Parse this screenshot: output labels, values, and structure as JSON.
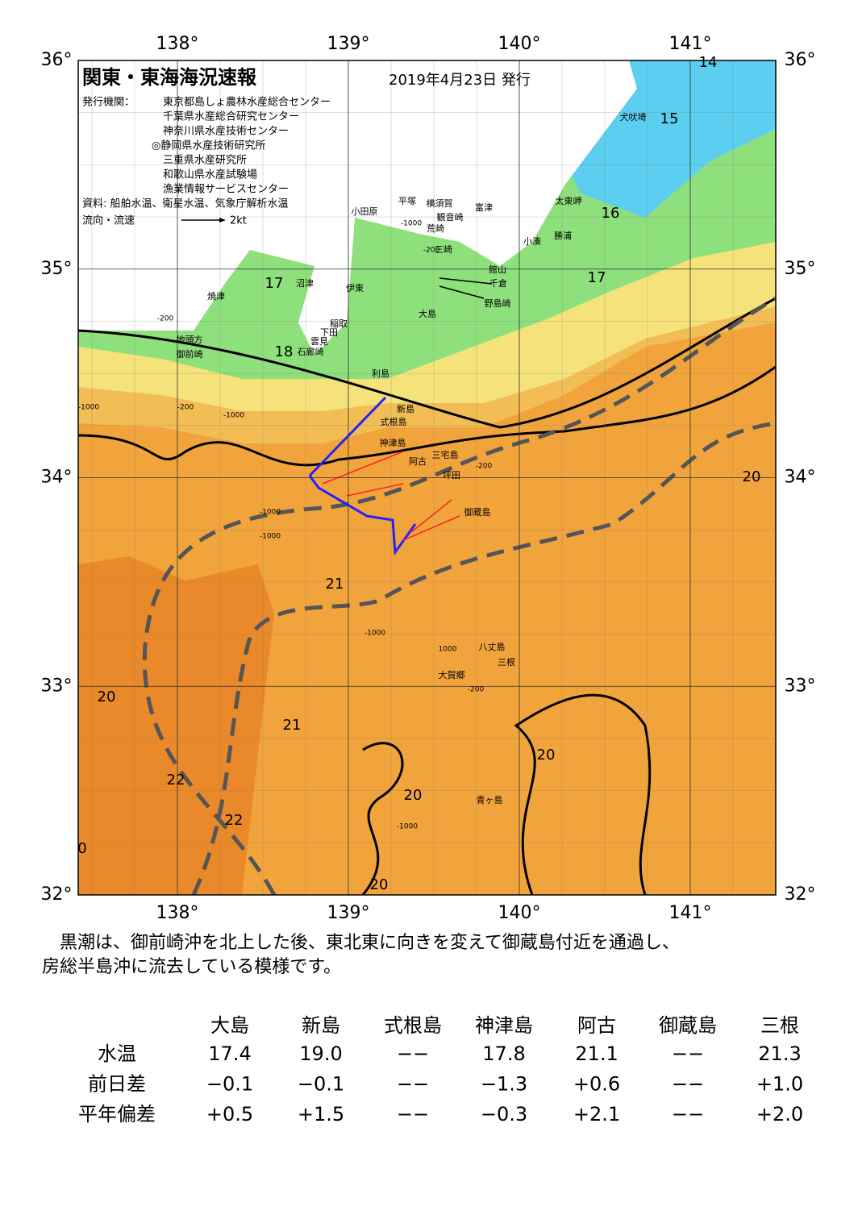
{
  "header": {
    "title": "関東・東海海況速報",
    "date": "2019年4月23日 発行",
    "issuer_label": "発行機関：",
    "issuers": [
      "東京都島しょ農林水産総合センター",
      "千葉県水産総合研究センター",
      "神奈川県水産技術センター",
      "◎静岡県水産技術研究所",
      "三重県水産研究所",
      "和歌山県水産試験場",
      "漁業情報サービスセンター"
    ],
    "source": "資料: 船舶水温、衛星水温、気象庁解析水温",
    "flow_label": "流向・流速",
    "flow_scale": "2kt"
  },
  "map": {
    "lon_ticks": [
      {
        "value": 138,
        "label": "138°"
      },
      {
        "value": 139,
        "label": "139°"
      },
      {
        "value": 140,
        "label": "140°"
      },
      {
        "value": 141,
        "label": "141°"
      }
    ],
    "lat_ticks": [
      {
        "value": 32,
        "label": "32°"
      },
      {
        "value": 33,
        "label": "33°"
      },
      {
        "value": 34,
        "label": "34°"
      },
      {
        "value": 35,
        "label": "35°"
      },
      {
        "value": 36,
        "label": "36°"
      }
    ],
    "place_names": [
      "犬吠埼",
      "太東岬",
      "勝浦",
      "小湊",
      "館山",
      "千倉",
      "野島崎",
      "富津",
      "横須賀",
      "観音崎",
      "平塚",
      "小田原",
      "荒崎",
      "三崎",
      "沼津",
      "伊東",
      "大島",
      "焼津",
      "稲取",
      "下田",
      "雲見",
      "石廊崎",
      "地頭方",
      "御前崎",
      "利島",
      "新島",
      "式根島",
      "神津島",
      "三宅島",
      "阿古",
      "坪田",
      "御蔵島",
      "八丈島",
      "三根",
      "大賀郷",
      "青ヶ島"
    ],
    "contour_labels": [
      "14",
      "15",
      "16",
      "17",
      "17",
      "18",
      "20",
      "21",
      "20",
      "21",
      "20",
      "22",
      "20",
      "22",
      "0",
      "20"
    ],
    "depth_labels": [
      "-1000",
      "-200",
      "-200",
      "-1000",
      "-200",
      "-1000",
      "-1000",
      "-200",
      "-1000",
      "1000",
      "-1000",
      "-200",
      "-1000"
    ]
  },
  "description": [
    "　黒潮は、御前崎沖を北上した後、東北東に向きを変えて御蔵島付近を通過し、",
    "房総半島沖に流去している模様です。"
  ],
  "table": {
    "columns": [
      "大島",
      "新島",
      "式根島",
      "神津島",
      "阿古",
      "御蔵島",
      "三根"
    ],
    "rows": [
      {
        "label": "水温",
        "values": [
          "17.4",
          "19.0",
          "−−",
          "17.8",
          "21.1",
          "−−",
          "21.3"
        ]
      },
      {
        "label": "前日差",
        "values": [
          "−0.1",
          "−0.1",
          "−−",
          "−1.3",
          "+0.6",
          "−−",
          "+1.0"
        ]
      },
      {
        "label": "平年偏差",
        "values": [
          "+0.5",
          "+1.5",
          "−−",
          "−0.3",
          "+2.1",
          "−−",
          "+2.0"
        ]
      }
    ]
  }
}
